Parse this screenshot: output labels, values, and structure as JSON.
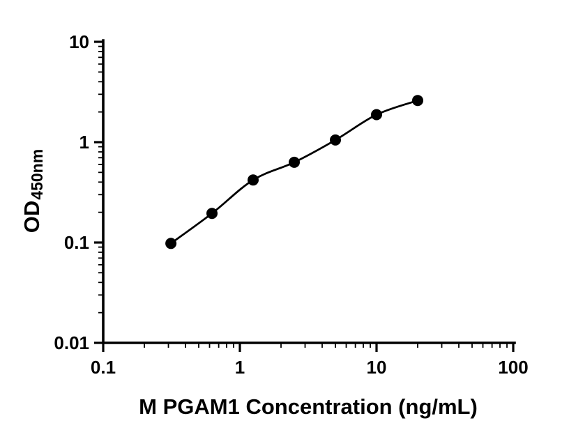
{
  "chart_data": {
    "type": "scatter",
    "title": "",
    "xlabel": "M PGAM1 Concentration (ng/mL)",
    "ylabel": "OD",
    "ylabel_subscript": "450nm",
    "x_scale": "log",
    "y_scale": "log",
    "xlim": [
      0.1,
      100
    ],
    "ylim": [
      0.01,
      10
    ],
    "x_tick_labels": [
      "0.1",
      "1",
      "10",
      "100"
    ],
    "y_tick_labels": [
      "0.01",
      "0.1",
      "1",
      "10"
    ],
    "x": [
      0.313,
      0.625,
      1.25,
      2.5,
      5,
      10,
      20
    ],
    "y": [
      0.098,
      0.195,
      0.42,
      0.63,
      1.05,
      1.88,
      2.6
    ],
    "curve": "smooth-fit-through-points",
    "marker": "filled-circle",
    "marker_color": "#000000",
    "line_color": "#000000",
    "axis_color": "#000000",
    "grid": false,
    "legend": false
  }
}
